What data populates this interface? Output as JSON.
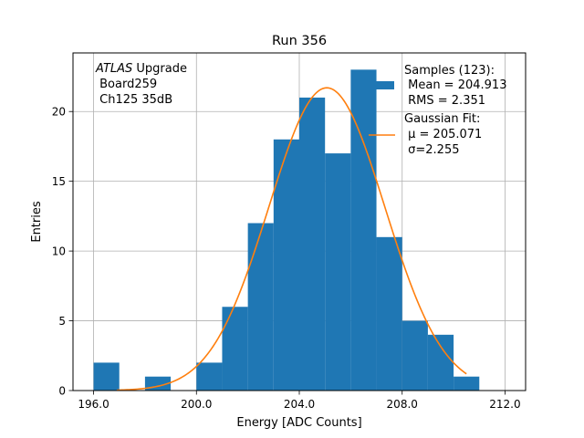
{
  "chart_data": {
    "type": "bar",
    "title": "Run 356",
    "xlabel": "Energy [ADC Counts]",
    "ylabel": "Entries",
    "xlim": [
      195.2,
      212.8
    ],
    "ylim": [
      0,
      24.2
    ],
    "xticks": [
      196.0,
      200.0,
      204.0,
      208.0,
      212.0
    ],
    "xtick_labels": [
      "196.0",
      "200.0",
      "204.0",
      "208.0",
      "212.0"
    ],
    "yticks": [
      0,
      5,
      10,
      15,
      20
    ],
    "ytick_labels": [
      "0",
      "5",
      "10",
      "15",
      "20"
    ],
    "grid": true,
    "legend_position": "top-right",
    "bin_width": 1,
    "bin_edges": [
      196,
      197,
      198,
      199,
      200,
      201,
      202,
      203,
      204,
      205,
      206,
      207,
      208,
      209,
      210,
      211
    ],
    "counts": [
      2,
      0,
      1,
      0,
      2,
      6,
      12,
      18,
      21,
      17,
      23,
      11,
      5,
      4,
      1
    ],
    "bar_color": "#1f77b4",
    "fit": {
      "mu": 205.071,
      "sigma": 2.255,
      "amplitude": 21.7,
      "x_range": [
        196.9,
        210.5
      ],
      "color": "#ff7f0e"
    },
    "annotation_lines": [
      "ATLAS Upgrade",
      " Board259",
      " Ch125 35dB"
    ],
    "annotation_italic_word": "ATLAS",
    "annotation_rest_first_line": " Upgrade",
    "legend": {
      "samples_lines": [
        "Samples (123):",
        " Mean = 204.913",
        " RMS = 2.351"
      ],
      "fit_lines": [
        "Gaussian Fit:",
        " μ = 205.071",
        " σ=2.255"
      ]
    }
  }
}
